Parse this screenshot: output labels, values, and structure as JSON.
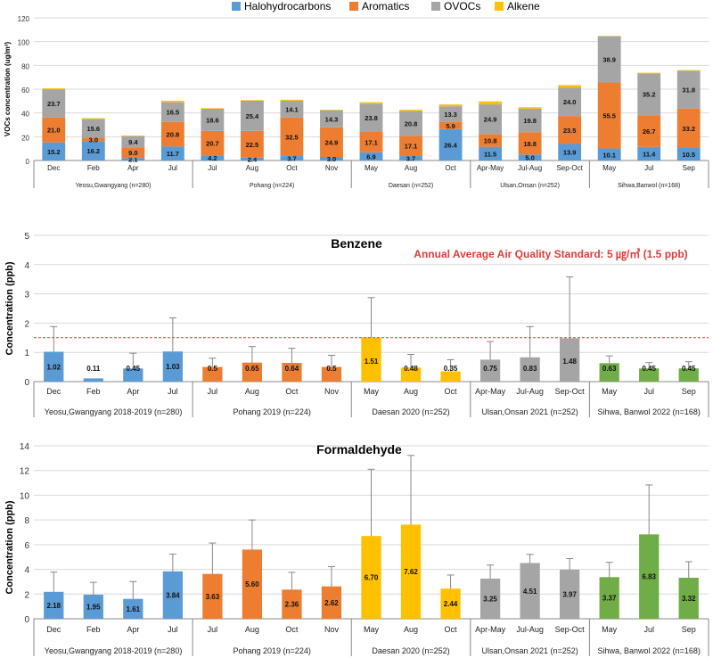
{
  "colors": {
    "halo": "#5b9bd5",
    "arom": "#ed7d31",
    "ovoc": "#a5a5a5",
    "alk": "#ffc000",
    "green": "#70ad47",
    "ref": "#e03b3b"
  },
  "chart_data": [
    {
      "type": "bar",
      "stacked": true,
      "title": "",
      "xlabel": "",
      "ylabel": "VOCs  concentration (ug/m³)",
      "ylim": [
        0,
        120
      ],
      "yticks": [
        0,
        20,
        40,
        60,
        80,
        100,
        120
      ],
      "legend": {
        "position": "top",
        "entries": [
          "Halohydrocarbons",
          "Aromatics",
          "OVOCs",
          "Alkene"
        ]
      },
      "categories": [
        "Dec",
        "Feb",
        "Apr",
        "Jul",
        "Jul",
        "Aug",
        "Oct",
        "Nov",
        "May",
        "Aug",
        "Oct",
        "Apr-May",
        "Jul-Aug",
        "Sep-Oct",
        "May",
        "Jul",
        "Sep"
      ],
      "groups": [
        {
          "label": "Yeosu,Gwangyang (n=280)",
          "count": 4
        },
        {
          "label": "Pohang (n=224)",
          "count": 4
        },
        {
          "label": "Daesan (n=252)",
          "count": 3
        },
        {
          "label": "Ulsan,Onsan (n=252)",
          "count": 3
        },
        {
          "label": "Sihwa,Banwol (n=168)",
          "count": 3
        }
      ],
      "series": [
        {
          "name": "Halohydrocarbons",
          "values": [
            15.2,
            16.2,
            2.1,
            11.7,
            4.2,
            2.4,
            3.7,
            3.0,
            6.9,
            3.7,
            26.4,
            11.5,
            5.0,
            13.9,
            10.1,
            11.4,
            10.5
          ]
        },
        {
          "name": "Aromatics",
          "values": [
            21.0,
            3.0,
            9.0,
            20.8,
            20.7,
            22.5,
            32.5,
            24.9,
            17.1,
            17.1,
            5.9,
            10.8,
            18.8,
            23.5,
            55.5,
            26.7,
            33.2
          ]
        },
        {
          "name": "OVOCs",
          "values": [
            23.7,
            15.6,
            9.4,
            16.5,
            18.6,
            25.4,
            14.1,
            14.3,
            23.8,
            20.8,
            13.3,
            24.9,
            19.8,
            24.0,
            38.9,
            35.2,
            31.8
          ]
        },
        {
          "name": "Alkene",
          "values": [
            0.8,
            0.8,
            0.5,
            1.2,
            0.5,
            0.5,
            0.8,
            0.5,
            1.2,
            1.0,
            1.5,
            2.5,
            1.2,
            2.0,
            0.3,
            0.5,
            0.5
          ]
        }
      ]
    },
    {
      "type": "bar",
      "title": "Benzene",
      "xlabel": "",
      "ylabel": "Concentration (ppb)",
      "ylim": [
        0,
        5
      ],
      "yticks": [
        0,
        1,
        2,
        3,
        4,
        5
      ],
      "reference": {
        "value": 1.5,
        "label": "Annual Average Air Quality Standard: 5 ㎍/㎥ (1.5 ppb)"
      },
      "categories": [
        "Dec",
        "Feb",
        "Apr",
        "Jul",
        "Jul",
        "Aug",
        "Oct",
        "Nov",
        "May",
        "Aug",
        "Oct",
        "Apr-May",
        "Jul-Aug",
        "Sep-Oct",
        "May",
        "Jul",
        "Sep"
      ],
      "groups": [
        {
          "label": "Yeosu,Gwangyang 2018-2019 (n=280)",
          "count": 4
        },
        {
          "label": "Pohang 2019 (n=224)",
          "count": 4
        },
        {
          "label": "Daesan 2020 (n=252)",
          "count": 3
        },
        {
          "label": "Ulsan,Onsan 2021 (n=252)",
          "count": 3
        },
        {
          "label": "Sihwa, Banwol 2022 (n=168)",
          "count": 3
        }
      ],
      "values": [
        1.02,
        0.11,
        0.45,
        1.03,
        0.5,
        0.65,
        0.64,
        0.5,
        1.51,
        0.48,
        0.35,
        0.75,
        0.83,
        1.48,
        0.63,
        0.45,
        0.45
      ],
      "errors": [
        0.86,
        0.0,
        0.52,
        1.15,
        0.3,
        0.55,
        0.5,
        0.4,
        1.36,
        0.45,
        0.4,
        0.62,
        1.05,
        2.1,
        0.25,
        0.2,
        0.23
      ]
    },
    {
      "type": "bar",
      "title": "Formaldehyde",
      "xlabel": "",
      "ylabel": "Concentration (ppb)",
      "ylim": [
        0,
        14
      ],
      "yticks": [
        0,
        2,
        4,
        6,
        8,
        10,
        12,
        14
      ],
      "categories": [
        "Dec",
        "Feb",
        "Apr",
        "Jul",
        "Jul",
        "Aug",
        "Oct",
        "Nov",
        "May",
        "Aug",
        "Oct",
        "Apr-May",
        "Jul-Aug",
        "Sep-Oct",
        "May",
        "Jul",
        "Sep"
      ],
      "groups": [
        {
          "label": "Yeosu,Gwangyang 2018-2019 (n=280)",
          "count": 4
        },
        {
          "label": "Pohang 2019 (n=224)",
          "count": 4
        },
        {
          "label": "Daesan 2020 (n=252)",
          "count": 3
        },
        {
          "label": "Ulsan,Onsan 2021 (n=252)",
          "count": 3
        },
        {
          "label": "Sihwa, Banwol 2022 (n=168)",
          "count": 3
        }
      ],
      "values": [
        2.18,
        1.95,
        1.61,
        3.84,
        3.63,
        5.6,
        2.36,
        2.62,
        6.7,
        7.62,
        2.44,
        3.25,
        4.51,
        3.97,
        3.37,
        6.83,
        3.32
      ],
      "errors": [
        1.6,
        1.0,
        1.4,
        1.4,
        2.5,
        2.4,
        1.4,
        1.6,
        5.4,
        5.6,
        1.1,
        1.1,
        0.7,
        0.9,
        1.2,
        4.0,
        1.3
      ]
    }
  ]
}
